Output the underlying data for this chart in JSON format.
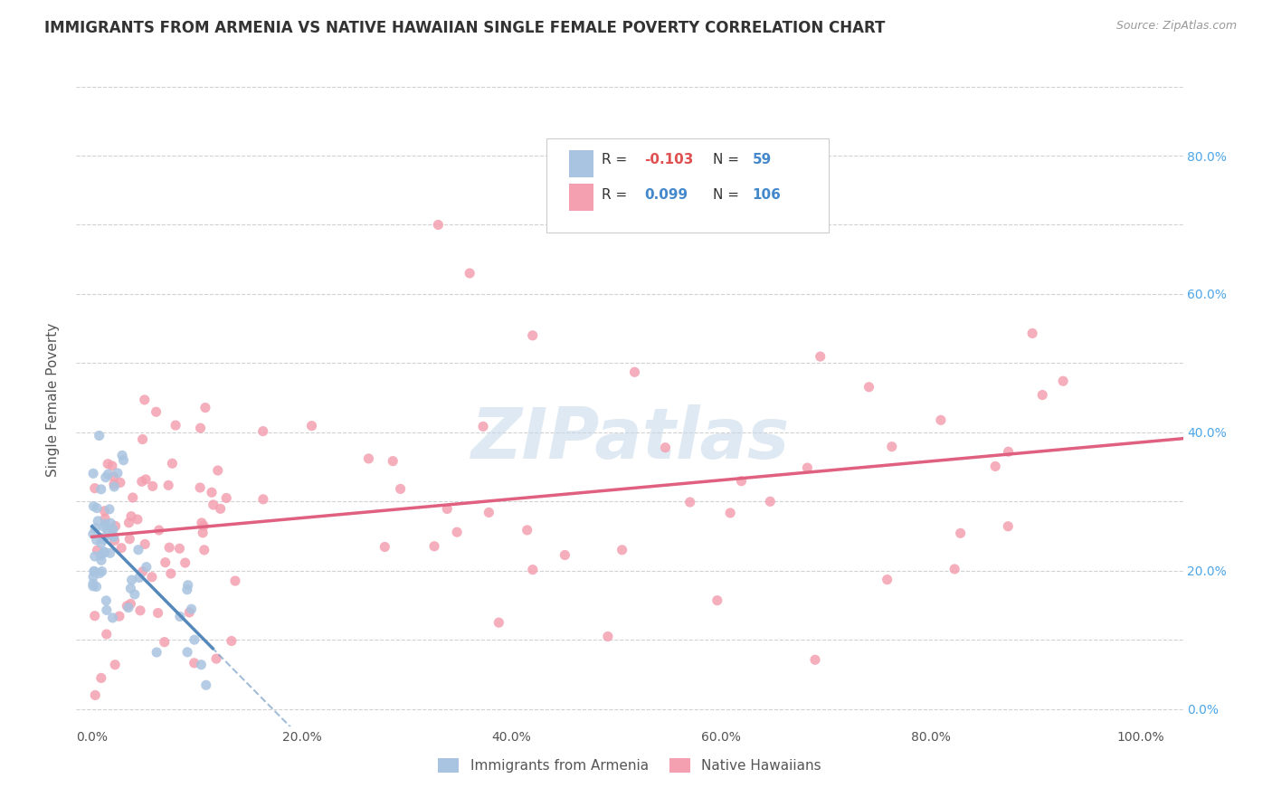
{
  "title": "IMMIGRANTS FROM ARMENIA VS NATIVE HAWAIIAN SINGLE FEMALE POVERTY CORRELATION CHART",
  "source": "Source: ZipAtlas.com",
  "ylabel": "Single Female Poverty",
  "legend_armenia": "Immigrants from Armenia",
  "legend_hawaiian": "Native Hawaiians",
  "r_armenia": -0.103,
  "n_armenia": 59,
  "r_hawaiian": 0.099,
  "n_hawaiian": 106,
  "color_armenia": "#a8c4e0",
  "color_hawaiian": "#f4a0b0",
  "line_armenia": "#5588bb",
  "line_hawaiian": "#e06080",
  "background": "#ffffff",
  "grid_color": "#cccccc",
  "watermark_color": "#c5d8ea",
  "title_color": "#333333",
  "source_color": "#999999",
  "tick_color_right": "#4da6e8",
  "ylabel_color": "#555555"
}
